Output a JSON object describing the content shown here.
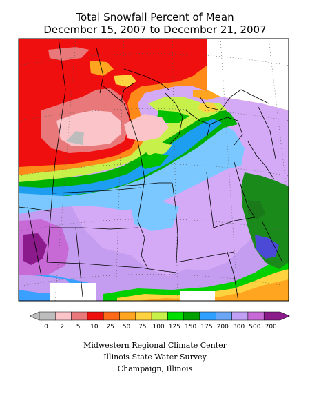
{
  "title": {
    "line1": "Total Snowfall Percent of Mean",
    "line2": "December 15, 2007 to December 21, 2007"
  },
  "legend": {
    "labels": [
      "0",
      "2",
      "5",
      "10",
      "25",
      "50",
      "75",
      "100",
      "125",
      "150",
      "175",
      "200",
      "300",
      "500",
      "700"
    ],
    "colors": [
      "#bdbdbd",
      "#fbc4c8",
      "#e8787a",
      "#f00f0f",
      "#ff6a1a",
      "#ffa51f",
      "#ffd23f",
      "#c8f04a",
      "#00e000",
      "#00a000",
      "#2fa0ff",
      "#6aa6f5",
      "#c0a0f5",
      "#c76ad6",
      "#8b1a8b"
    ]
  },
  "credits": {
    "line1": "Midwestern Regional Climate Center",
    "line2": "Illinois State Water Survey",
    "line3": "Champaign, Illinois"
  }
}
